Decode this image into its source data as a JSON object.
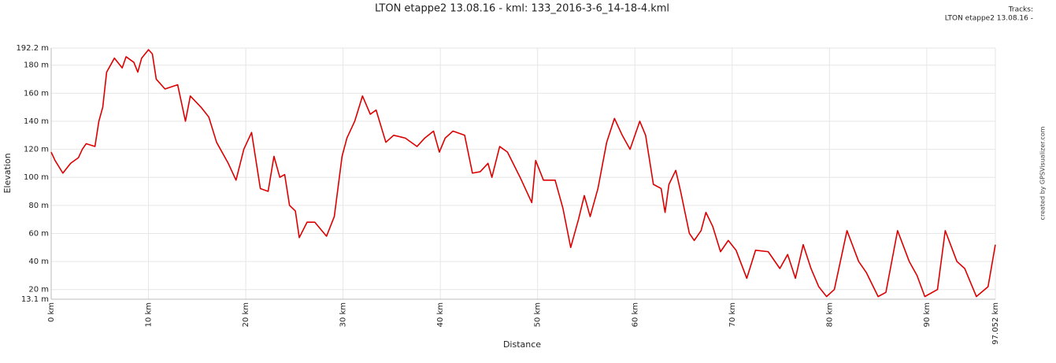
{
  "chart_data": {
    "type": "line",
    "title": "LTON etappe2 13.08.16 - kml: 133_2016-3-6_14-18-4.kml",
    "legend_title": "Tracks:",
    "legend_position": "top-right",
    "xlabel": "Distance",
    "ylabel": "Elevation",
    "watermark": "created by GPSVisualizer.com",
    "grid": true,
    "x": [
      0,
      0.4,
      1.2,
      2.0,
      2.8,
      3.2,
      3.6,
      4.5,
      4.9,
      5.3,
      5.7,
      6.5,
      7.3,
      7.7,
      8.5,
      8.9,
      9.3,
      10.0,
      10.4,
      10.8,
      11.7,
      13.0,
      13.8,
      14.3,
      15.4,
      16.2,
      17.0,
      18.2,
      19.0,
      19.8,
      20.6,
      21.5,
      22.3,
      22.9,
      23.5,
      24.0,
      24.5,
      25.1,
      25.5,
      26.3,
      27.1,
      28.3,
      29.1,
      29.9,
      30.4,
      31.2,
      32.0,
      32.8,
      33.4,
      34.4,
      35.2,
      36.4,
      37.6,
      38.4,
      39.3,
      39.9,
      40.5,
      41.3,
      42.5,
      43.3,
      44.1,
      44.9,
      45.3,
      46.1,
      46.9,
      48.2,
      49.4,
      49.8,
      50.6,
      51.8,
      52.6,
      53.4,
      54.2,
      54.8,
      55.4,
      56.2,
      57.1,
      57.9,
      58.7,
      59.5,
      60.5,
      61.1,
      61.9,
      62.7,
      63.1,
      63.5,
      64.2,
      64.7,
      65.6,
      66.1,
      66.8,
      67.3,
      68.0,
      68.8,
      69.6,
      70.4,
      71.5,
      72.4,
      73.7,
      74.9,
      75.7,
      76.5,
      77.3,
      78.1,
      78.9,
      79.7,
      80.5,
      81.8,
      83.0,
      83.8,
      85.0,
      85.8,
      87.0,
      88.2,
      89.0,
      89.8,
      91.1,
      91.9,
      93.1,
      93.9,
      95.1,
      96.3,
      97.05
    ],
    "series": [
      {
        "name": "LTON etappe2 13.08.16 -",
        "color": "#dd0000",
        "values": [
          118,
          112,
          103,
          110,
          114,
          120,
          124,
          122,
          140,
          150,
          175,
          185,
          178,
          186,
          182,
          175,
          185,
          191,
          188,
          170,
          163,
          166,
          140,
          158,
          150,
          143,
          125,
          110,
          98,
          120,
          132,
          92,
          90,
          115,
          100,
          102,
          80,
          76,
          57,
          68,
          68,
          58,
          72,
          115,
          128,
          140,
          158,
          145,
          148,
          125,
          130,
          128,
          122,
          128,
          133,
          118,
          128,
          133,
          130,
          103,
          104,
          110,
          100,
          122,
          118,
          100,
          82,
          112,
          98,
          98,
          78,
          50,
          70,
          87,
          72,
          92,
          125,
          142,
          130,
          120,
          140,
          130,
          95,
          92,
          75,
          95,
          105,
          90,
          60,
          55,
          62,
          75,
          65,
          47,
          55,
          48,
          28,
          48,
          47,
          35,
          45,
          28,
          52,
          35,
          22,
          15,
          20,
          62,
          40,
          32,
          15,
          18,
          62,
          40,
          30,
          15,
          20,
          62,
          40,
          35,
          15,
          22,
          52
        ]
      }
    ],
    "xlim": [
      0,
      97.052
    ],
    "xticks": [
      {
        "value": 0,
        "label": "0 km"
      },
      {
        "value": 10,
        "label": "10 km"
      },
      {
        "value": 20,
        "label": "20 km"
      },
      {
        "value": 30,
        "label": "30 km"
      },
      {
        "value": 40,
        "label": "40 km"
      },
      {
        "value": 50,
        "label": "50 km"
      },
      {
        "value": 60,
        "label": "60 km"
      },
      {
        "value": 70,
        "label": "70 km"
      },
      {
        "value": 80,
        "label": "80 km"
      },
      {
        "value": 90,
        "label": "90 km"
      },
      {
        "value": 97.052,
        "label": "97.052 km"
      }
    ],
    "ylim": [
      13.1,
      192.2
    ],
    "yticks": [
      {
        "value": 13.1,
        "label": "13.1 m"
      },
      {
        "value": 20,
        "label": "20 m"
      },
      {
        "value": 40,
        "label": "40 m"
      },
      {
        "value": 60,
        "label": "60 m"
      },
      {
        "value": 80,
        "label": "80 m"
      },
      {
        "value": 100,
        "label": "100 m"
      },
      {
        "value": 120,
        "label": "120 m"
      },
      {
        "value": 140,
        "label": "140 m"
      },
      {
        "value": 160,
        "label": "160 m"
      },
      {
        "value": 180,
        "label": "180 m"
      },
      {
        "value": 192.2,
        "label": "192.2 m"
      }
    ]
  }
}
